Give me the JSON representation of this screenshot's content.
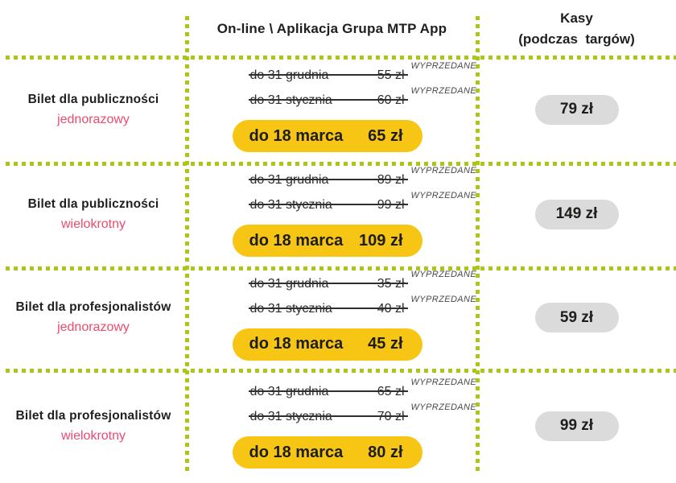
{
  "header": {
    "online_channel": "On-line \\ Aplikacja Grupa MTP App",
    "kasy_line1": "Kasy",
    "kasy_line2": "(podczas  targów)"
  },
  "sold_out_label": "WYPRZEDANE",
  "rows": [
    {
      "title": "Bilet dla publiczności",
      "subtitle": "jednorazowy",
      "tiers": [
        {
          "period": "do 31 grudnia",
          "price": "55 zł",
          "sold_out": true
        },
        {
          "period": "do 31 stycznia",
          "price": "60 zł",
          "sold_out": true
        }
      ],
      "current": {
        "period": "do 18 marca",
        "price": "65 zł"
      },
      "kasy_price": "79 zł"
    },
    {
      "title": "Bilet dla publiczności",
      "subtitle": "wielokrotny",
      "tiers": [
        {
          "period": "do 31 grudnia",
          "price": "89 zł",
          "sold_out": true
        },
        {
          "period": "do 31 stycznia",
          "price": "99 zł",
          "sold_out": true
        }
      ],
      "current": {
        "period": "do 18 marca",
        "price": "109 zł"
      },
      "kasy_price": "149 zł"
    },
    {
      "title": "Bilet dla profesjonalistów",
      "subtitle": "jednorazowy",
      "tiers": [
        {
          "period": "do 31 grudnia",
          "price": "35 zł",
          "sold_out": true
        },
        {
          "period": "do 31 stycznia",
          "price": "40 zł",
          "sold_out": true
        }
      ],
      "current": {
        "period": "do 18 marca",
        "price": "45 zł"
      },
      "kasy_price": "59 zł"
    },
    {
      "title": "Bilet dla profesjonalistów",
      "subtitle": "wielokrotny",
      "tiers": [
        {
          "period": "do 31 grudnia",
          "price": "65 zł",
          "sold_out": true
        },
        {
          "period": "do 31 stycznia",
          "price": "70 zł",
          "sold_out": true
        }
      ],
      "current": {
        "period": "do 18 marca",
        "price": "80 zł"
      },
      "kasy_price": "99 zł"
    }
  ],
  "colors": {
    "dotted_line_green": "#A9C815",
    "highlight_yellow": "#F7C513",
    "kasy_pill_gray": "#DBDBDB",
    "subtitle_pink": "#EC4A6E",
    "text_dark": "#1D1D1B",
    "sold_out_gray": "#4A4A4A"
  }
}
